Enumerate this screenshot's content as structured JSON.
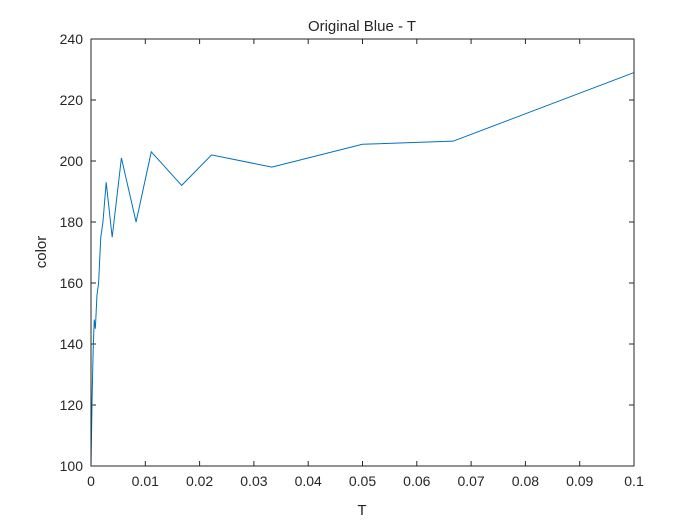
{
  "chart_data": {
    "type": "line",
    "title": "Original Blue - T",
    "xlabel": "T",
    "ylabel": "color",
    "xlim": [
      0,
      0.1
    ],
    "ylim": [
      100,
      240
    ],
    "xticks": [
      0,
      0.01,
      0.02,
      0.03,
      0.04,
      0.05,
      0.06,
      0.07,
      0.08,
      0.09,
      0.1
    ],
    "xtick_labels": [
      "0",
      "0.01",
      "0.02",
      "0.03",
      "0.04",
      "0.05",
      "0.06",
      "0.07",
      "0.08",
      "0.09",
      "0.1"
    ],
    "yticks": [
      100,
      120,
      140,
      160,
      180,
      200,
      220,
      240
    ],
    "ytick_labels": [
      "100",
      "120",
      "140",
      "160",
      "180",
      "200",
      "220",
      "240"
    ],
    "grid": false,
    "line_color": "#0072BD",
    "series": [
      {
        "x": [
          0,
          0.0002,
          0.0004,
          0.0006,
          0.0008,
          0.0011,
          0.0014,
          0.0018,
          0.0022,
          0.0028,
          0.0039,
          0.0056,
          0.0083,
          0.0111,
          0.0167,
          0.0222,
          0.0333,
          0.05,
          0.0667,
          0.1
        ],
        "y": [
          100,
          122,
          138,
          148,
          145,
          156,
          160,
          175,
          180,
          193,
          175,
          201,
          180,
          203,
          192,
          202,
          198,
          205.5,
          206.5,
          229
        ]
      }
    ]
  }
}
